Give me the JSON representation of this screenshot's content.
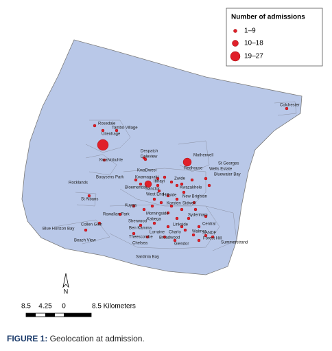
{
  "map": {
    "legend": {
      "title": "Number of admissions",
      "entries": [
        "1–9",
        "10–18",
        "19–27"
      ]
    },
    "places": [
      "Colchester",
      "Rosedale",
      "Tambo Village",
      "Uitenhage",
      "Despatch",
      "Daleview",
      "KwaNobuhle",
      "Motherwell",
      "St Georges",
      "Redhouse",
      "Wells Estate",
      "Bluewater Bay",
      "KwaDwesi",
      "Booysens Park",
      "Rocklands",
      "Kwamagxaki",
      "Ibhayi",
      "Bloemendal",
      "Zwide",
      "Kwazakhele",
      "Sanctor",
      "West End",
      "Hillside",
      "New Brighton",
      "St Albans",
      "Korsten",
      "Sidwell",
      "Kuyga",
      "Rowallan Park",
      "Morningside",
      "Sydenham",
      "Kabega",
      "Sherwood",
      "Linkside",
      "Central",
      "Collen Glen",
      "Ben Kamma",
      "Lorraine",
      "Charlo",
      "Walmer",
      "Blue Horizon Bay",
      "SANDF",
      "Theescombe",
      "Forest Hill",
      "Beach View",
      "Chelsea",
      "Broadwood",
      "Glendor",
      "Summerstrand",
      "Sardinia Bay"
    ],
    "north": "N",
    "scale": {
      "ticks": [
        "8.5",
        "4.25",
        "0"
      ],
      "end_label": "8.5 Kilometers"
    }
  },
  "caption": {
    "label": "FIGURE 1:",
    "text": " Geolocation at admission."
  }
}
